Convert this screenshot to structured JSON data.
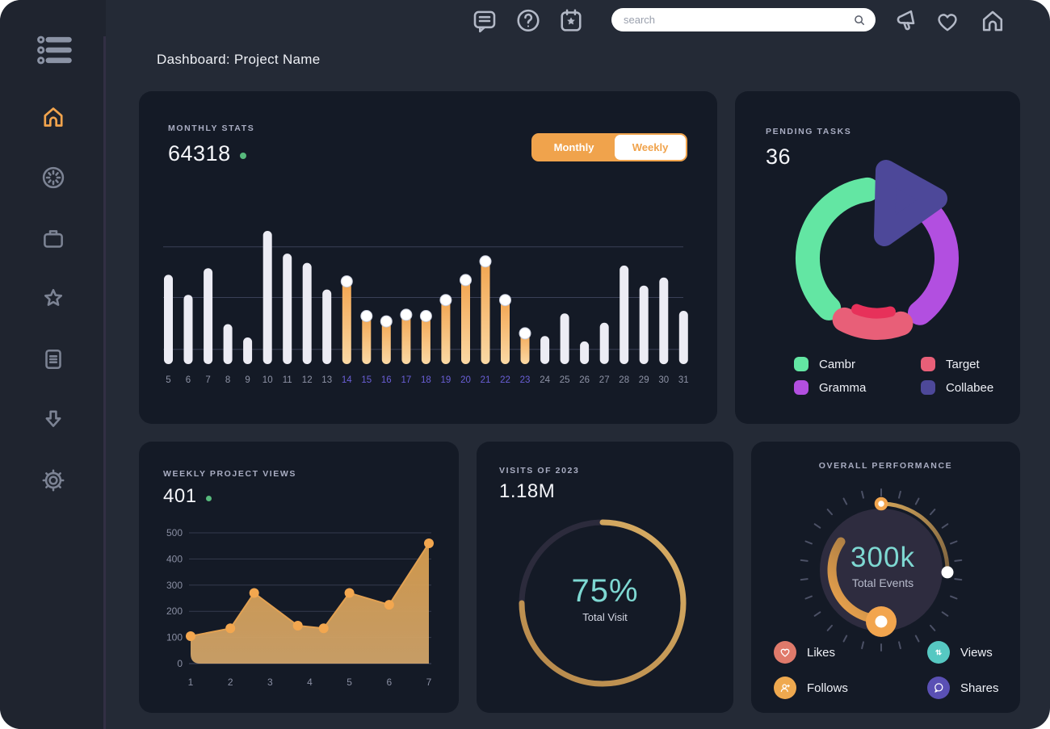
{
  "app": {
    "title": "Dashboard: Project Name"
  },
  "topbar": {
    "search": {
      "placeholder": "search"
    },
    "icons": {
      "left": [
        "chat",
        "help",
        "calendar"
      ],
      "right": [
        "megaphone",
        "heart",
        "home"
      ]
    }
  },
  "sidebar": {
    "active_item": "home",
    "items": [
      "home",
      "activity",
      "projects",
      "favorites",
      "notes",
      "downloads",
      "settings"
    ]
  },
  "cards": {
    "monthly_stats": {
      "label": "MONTHLY STATS",
      "value": "64318",
      "toggle": {
        "options": [
          "Monthly",
          "Weekly"
        ],
        "active": "Monthly"
      }
    },
    "pending_tasks": {
      "label": "PENDING TASKS",
      "value": "36",
      "legend": [
        {
          "label": "Cambr",
          "color": "#63e6a3"
        },
        {
          "label": "Target",
          "color": "#e85f78"
        },
        {
          "label": "Gramma",
          "color": "#b24fe0"
        },
        {
          "label": "Collabee",
          "color": "#4d4899"
        }
      ]
    },
    "weekly_views": {
      "label": "WEEKLY PROJECT VIEWS",
      "value": "401"
    },
    "visits": {
      "label": "VISITS OF 2023",
      "value": "1.18M",
      "percent_label": "75%",
      "sublabel": "Total Visit"
    },
    "performance": {
      "label": "OVERALL PERFORMANCE",
      "value": "300k",
      "sublabel": "Total Events",
      "legend": [
        {
          "label": "Likes",
          "color": "#e07a6b",
          "icon": "heart"
        },
        {
          "label": "Views",
          "color": "#56c8c2",
          "icon": "arrows-vertical"
        },
        {
          "label": "Follows",
          "color": "#efa94f",
          "icon": "user-plus"
        },
        {
          "label": "Shares",
          "color": "#5a50b4",
          "icon": "chat-bubble"
        }
      ]
    }
  },
  "chart_data": [
    {
      "id": "monthly-stats-bar",
      "type": "bar",
      "title": "MONTHLY STATS",
      "categories": [
        "5",
        "6",
        "7",
        "8",
        "9",
        "10",
        "11",
        "12",
        "13",
        "14",
        "15",
        "16",
        "17",
        "18",
        "19",
        "20",
        "21",
        "22",
        "23",
        "24",
        "25",
        "26",
        "27",
        "28",
        "29",
        "30",
        "31"
      ],
      "values": [
        67,
        52,
        72,
        30,
        20,
        100,
        83,
        76,
        56,
        66,
        40,
        36,
        41,
        40,
        52,
        67,
        81,
        52,
        27,
        21,
        38,
        17,
        31,
        74,
        59,
        65,
        40
      ],
      "highlighted_categories": [
        "14",
        "15",
        "16",
        "17",
        "18",
        "19",
        "20",
        "21",
        "22",
        "23"
      ],
      "ylim": [
        0,
        100
      ],
      "gridlines_pct": [
        11,
        50,
        88
      ],
      "bar_color": "#ececf4",
      "highlight_gradient": [
        "#f2a24b",
        "#fbd9a5"
      ],
      "tick_color": "#8e93a6",
      "highlight_tick_color": "#6a5fd6"
    },
    {
      "id": "pending-tasks-donut",
      "type": "donut",
      "title": "PENDING TASKS",
      "total": 36,
      "segments": [
        {
          "label": "Cambr",
          "color": "#63e6a3",
          "percent": 38,
          "start_deg": 224,
          "end_deg": 352
        },
        {
          "label": "Gramma",
          "color": "#b24fe0",
          "percent": 27,
          "start_deg": 48,
          "end_deg": 142
        },
        {
          "label": "Target",
          "color": "#e85f78",
          "percent": 16,
          "start_deg": 160,
          "end_deg": 208,
          "inner_accent_color": "#e7315a"
        },
        {
          "label": "Collabee",
          "color": "#4d4899",
          "percent": 19,
          "shape": "triangle"
        }
      ]
    },
    {
      "id": "weekly-views-area",
      "type": "area",
      "title": "WEEKLY PROJECT VIEWS",
      "x": [
        1,
        2,
        2.6,
        3.7,
        4.35,
        5,
        6,
        7
      ],
      "y": [
        105,
        135,
        270,
        145,
        135,
        270,
        225,
        460
      ],
      "xticks": [
        1,
        2,
        3,
        4,
        5,
        6,
        7
      ],
      "yticks": [
        0,
        100,
        200,
        300,
        400,
        500
      ],
      "xlim": [
        1,
        7
      ],
      "ylim": [
        0,
        500
      ],
      "point_color": "#f3a74f",
      "fill_gradient": [
        "#d89d4e",
        "#cfa369"
      ]
    },
    {
      "id": "visits-progress-ring",
      "type": "progress-ring",
      "title": "VISITS OF 2023",
      "percent": 75,
      "center_label": "75%",
      "center_sublabel": "Total Visit",
      "arc_gradient": [
        "#d6ab62",
        "#b5874a"
      ],
      "track_color": "#2c2b3c"
    },
    {
      "id": "performance-gauge",
      "type": "gauge",
      "title": "OVERALL PERFORMANCE",
      "center_label": "300k",
      "center_sublabel": "Total Events",
      "outer_arc": {
        "start_deg": 2,
        "end_deg": 92,
        "gradient": [
          "#cfa258",
          "#7d6340"
        ]
      },
      "inner_arc": {
        "start_deg": 180,
        "end_deg": 305,
        "gradient": [
          "#f4a84e",
          "#a57a43"
        ]
      },
      "dial_color": "#2e2c3f",
      "tick_color": "#4c5166",
      "knob_color": "#f2a54e"
    }
  ]
}
